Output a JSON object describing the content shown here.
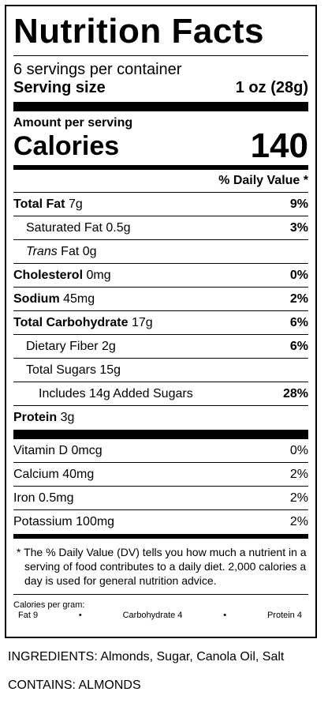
{
  "label": {
    "title": "Nutrition Facts",
    "servings_per_container": "6 servings per container",
    "serving_size_label": "Serving size",
    "serving_size_value": "1 oz (28g)",
    "amount_per_serving": "Amount per serving",
    "calories_label": "Calories",
    "calories_value": "140",
    "dv_header": "% Daily Value *"
  },
  "nutrients": {
    "total_fat": {
      "name": "Total Fat",
      "amount": "7g",
      "pct": "9%"
    },
    "saturated_fat": {
      "name": "Saturated Fat 0.5g",
      "pct": "3%"
    },
    "trans_fat": {
      "name_italic": "Trans",
      "name": "Fat 0g"
    },
    "cholesterol": {
      "name": "Cholesterol",
      "amount": "0mg",
      "pct": "0%"
    },
    "sodium": {
      "name": "Sodium",
      "amount": "45mg",
      "pct": "2%"
    },
    "total_carbohydrate": {
      "name": "Total Carbohydrate",
      "amount": "17g",
      "pct": "6%"
    },
    "dietary_fiber": {
      "name": "Dietary Fiber 2g",
      "pct": "6%"
    },
    "total_sugars": {
      "name": "Total Sugars 15g"
    },
    "added_sugars": {
      "name": "Includes 14g Added Sugars",
      "pct": "28%"
    },
    "protein": {
      "name": "Protein",
      "amount": "3g"
    }
  },
  "vitamins": {
    "vitamin_d": {
      "name": "Vitamin D 0mcg",
      "pct": "0%"
    },
    "calcium": {
      "name": "Calcium 40mg",
      "pct": "2%"
    },
    "iron": {
      "name": "Iron 0.5mg",
      "pct": "2%"
    },
    "potassium": {
      "name": "Potassium 100mg",
      "pct": "2%"
    }
  },
  "footnote": "* The % Daily Value (DV) tells you how much a nutrient in a serving of food contributes to a daily diet. 2,000 calories a day is used for general nutrition advice.",
  "calories_per_gram": {
    "heading": "Calories per gram:",
    "fat": "Fat 9",
    "carbohydrate": "Carbohydrate 4",
    "protein": "Protein 4",
    "bullet": "•"
  },
  "ingredients": "INGREDIENTS: Almonds, Sugar, Canola Oil, Salt",
  "contains": "CONTAINS: ALMONDS"
}
